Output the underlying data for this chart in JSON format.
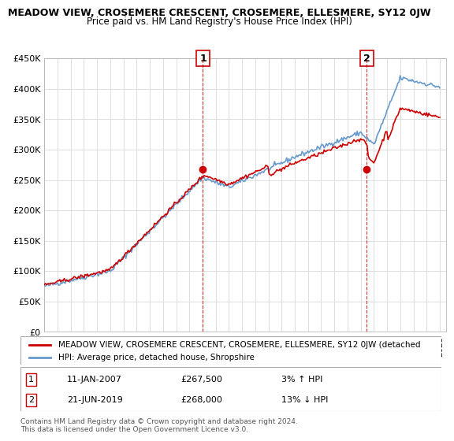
{
  "title": "MEADOW VIEW, CROSEMERE CRESCENT, CROSEMERE, ELLESMERE, SY12 0JW",
  "subtitle": "Price paid vs. HM Land Registry's House Price Index (HPI)",
  "ylabel_ticks": [
    "£0",
    "£50K",
    "£100K",
    "£150K",
    "£200K",
    "£250K",
    "£300K",
    "£350K",
    "£400K",
    "£450K"
  ],
  "ylim": [
    0,
    450000
  ],
  "x_start_year": 1995,
  "x_end_year": 2025,
  "legend_line1": "MEADOW VIEW, CROSEMERE CRESCENT, CROSEMERE, ELLESMERE, SY12 0JW (detached",
  "legend_line2": "HPI: Average price, detached house, Shropshire",
  "annotation1_label": "1",
  "annotation1_date": "11-JAN-2007",
  "annotation1_price": "£267,500",
  "annotation1_hpi": "3% ↑ HPI",
  "annotation2_label": "2",
  "annotation2_date": "21-JUN-2019",
  "annotation2_price": "£268,000",
  "annotation2_hpi": "13% ↓ HPI",
  "footer": "Contains HM Land Registry data © Crown copyright and database right 2024.\nThis data is licensed under the Open Government Licence v3.0.",
  "red_color": "#cc0000",
  "blue_color": "#6699cc",
  "annotation_color": "#cc0000",
  "grid_color": "#dddddd",
  "bg_color": "#ffffff"
}
